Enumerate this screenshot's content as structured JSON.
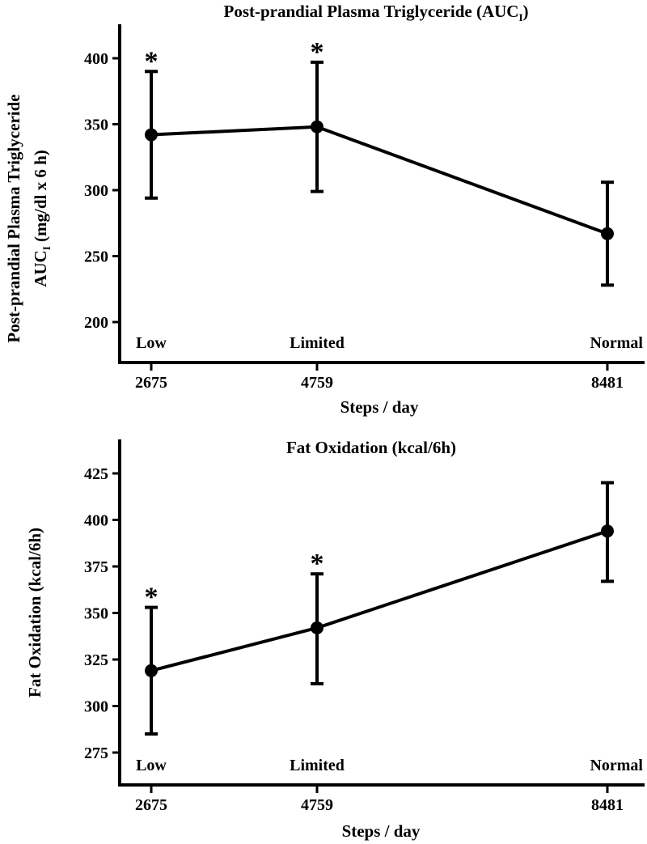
{
  "chart_data": [
    {
      "type": "line",
      "title": "Post-prandial Plasma Triglyceride (AUC",
      "title_sub": "I",
      "title_end": ")",
      "ylabel_line1": "Post-prandial Plasma Triglyceride",
      "ylabel_line2_pre": "AUC",
      "ylabel_line2_sub": "I",
      "ylabel_line2_post": " (mg/dl x 6 h)",
      "xlabel": "Steps / day",
      "x": [
        2675,
        4759,
        8481
      ],
      "xticks": [
        "2675",
        "4759",
        "8481"
      ],
      "group_labels": [
        "Low",
        "Limited",
        "Normal"
      ],
      "values": [
        342,
        348,
        267
      ],
      "err_low": [
        294,
        299,
        228
      ],
      "err_high": [
        390,
        397,
        306
      ],
      "significance": [
        "*",
        "*",
        ""
      ],
      "yticks": [
        200,
        250,
        300,
        350,
        400
      ],
      "ylim": [
        180,
        425
      ],
      "xlim": [
        2500,
        8700
      ]
    },
    {
      "type": "line",
      "title": "Fat Oxidation (kcal/6h)",
      "ylabel_line1": "Fat Oxidation (kcal/6h)",
      "xlabel": "Steps / day",
      "x": [
        2675,
        4759,
        8481
      ],
      "xticks": [
        "2675",
        "4759",
        "8481"
      ],
      "group_labels": [
        "Low",
        "Limited",
        "Normal"
      ],
      "values": [
        319,
        342,
        394
      ],
      "err_low": [
        285,
        312,
        367
      ],
      "err_high": [
        353,
        371,
        420
      ],
      "significance": [
        "*",
        "*",
        ""
      ],
      "yticks": [
        275,
        300,
        325,
        350,
        375,
        400,
        425
      ],
      "ylim": [
        262,
        435
      ],
      "xlim": [
        2500,
        8700
      ]
    }
  ]
}
